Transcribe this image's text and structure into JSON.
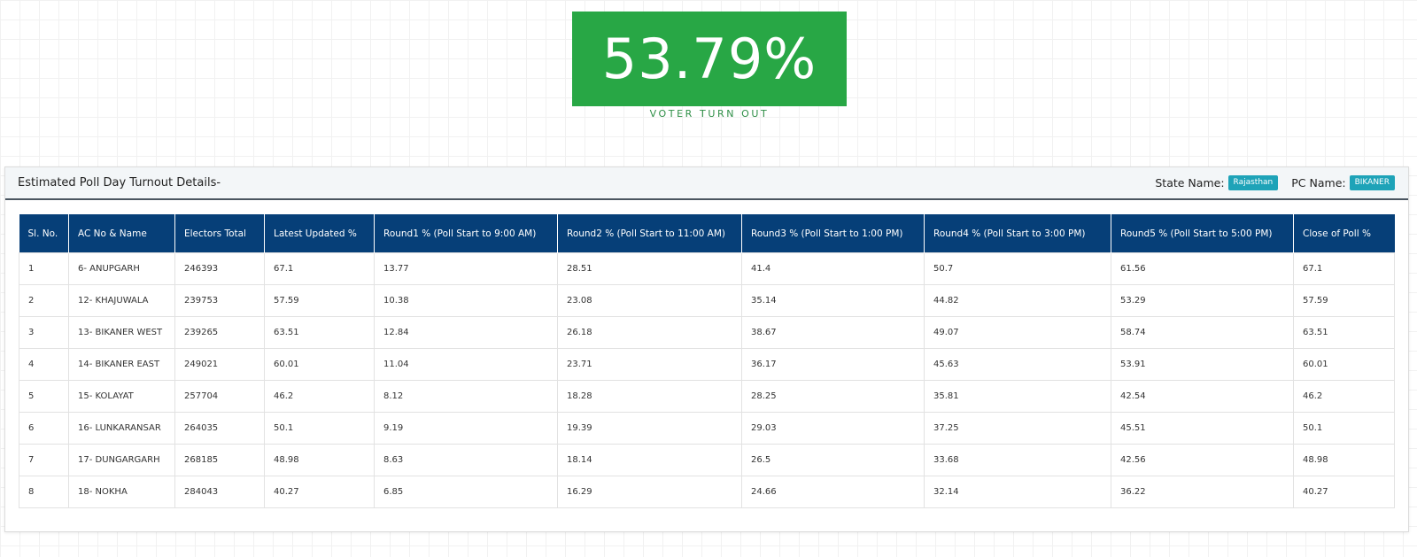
{
  "turnout": {
    "value": "53.79%",
    "label": "VOTER TURN OUT"
  },
  "panel": {
    "title": "Estimated Poll Day Turnout Details-",
    "state_label": "State Name:",
    "state_value": "Rajasthan",
    "pc_label": "PC Name:",
    "pc_value": "BIKANER"
  },
  "colors": {
    "turnout_green": "#28a745",
    "table_header": "#063f78",
    "badge": "#1ea3b8"
  },
  "table": {
    "columns": [
      "Sl. No.",
      "AC No & Name",
      "Electors Total",
      "Latest Updated %",
      "Round1 % (Poll Start to 9:00 AM)",
      "Round2 % (Poll Start to 11:00 AM)",
      "Round3 % (Poll Start to 1:00 PM)",
      "Round4 % (Poll Start to 3:00 PM)",
      "Round5 % (Poll Start to 5:00 PM)",
      "Close of Poll %"
    ],
    "rows": [
      [
        "1",
        "6- ANUPGARH",
        "246393",
        "67.1",
        "13.77",
        "28.51",
        "41.4",
        "50.7",
        "61.56",
        "67.1"
      ],
      [
        "2",
        "12- KHAJUWALA",
        "239753",
        "57.59",
        "10.38",
        "23.08",
        "35.14",
        "44.82",
        "53.29",
        "57.59"
      ],
      [
        "3",
        "13- BIKANER WEST",
        "239265",
        "63.51",
        "12.84",
        "26.18",
        "38.67",
        "49.07",
        "58.74",
        "63.51"
      ],
      [
        "4",
        "14- BIKANER EAST",
        "249021",
        "60.01",
        "11.04",
        "23.71",
        "36.17",
        "45.63",
        "53.91",
        "60.01"
      ],
      [
        "5",
        "15- KOLAYAT",
        "257704",
        "46.2",
        "8.12",
        "18.28",
        "28.25",
        "35.81",
        "42.54",
        "46.2"
      ],
      [
        "6",
        "16- LUNKARANSAR",
        "264035",
        "50.1",
        "9.19",
        "19.39",
        "29.03",
        "37.25",
        "45.51",
        "50.1"
      ],
      [
        "7",
        "17- DUNGARGARH",
        "268185",
        "48.98",
        "8.63",
        "18.14",
        "26.5",
        "33.68",
        "42.56",
        "48.98"
      ],
      [
        "8",
        "18- NOKHA",
        "284043",
        "40.27",
        "6.85",
        "16.29",
        "24.66",
        "32.14",
        "36.22",
        "40.27"
      ]
    ]
  }
}
